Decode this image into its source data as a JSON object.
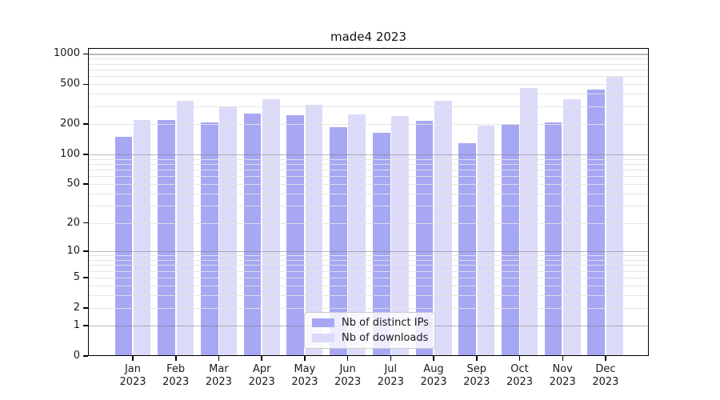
{
  "chart_data": {
    "type": "bar",
    "title": "made4 2023",
    "categories": [
      "Jan",
      "Feb",
      "Mar",
      "Apr",
      "May",
      "Jun",
      "Jul",
      "Aug",
      "Sep",
      "Oct",
      "Nov",
      "Dec"
    ],
    "x_sublabel": "2023",
    "series": [
      {
        "name": "Nb of distinct IPs",
        "color": "#a7a7f4",
        "values": [
          150,
          222,
          209,
          256,
          248,
          185,
          164,
          218,
          128,
          202,
          210,
          440
        ]
      },
      {
        "name": "Nb of downloads",
        "color": "#dbdbf9",
        "values": [
          220,
          345,
          303,
          357,
          315,
          252,
          242,
          342,
          195,
          458,
          352,
          590
        ]
      }
    ],
    "yticks": [
      0,
      1,
      2,
      5,
      10,
      20,
      50,
      100,
      200,
      500,
      1000
    ],
    "ygrid_major": [
      1,
      10,
      100,
      1000
    ],
    "ylim": [
      0,
      1146
    ],
    "yscale": "log1p",
    "xlabel": "",
    "ylabel": "",
    "grid": "horizontal major + faint log minors, drawn over bars",
    "legend_position": "lower center inside plot",
    "frame_color": "#000000",
    "background_color": "#ffffff"
  }
}
